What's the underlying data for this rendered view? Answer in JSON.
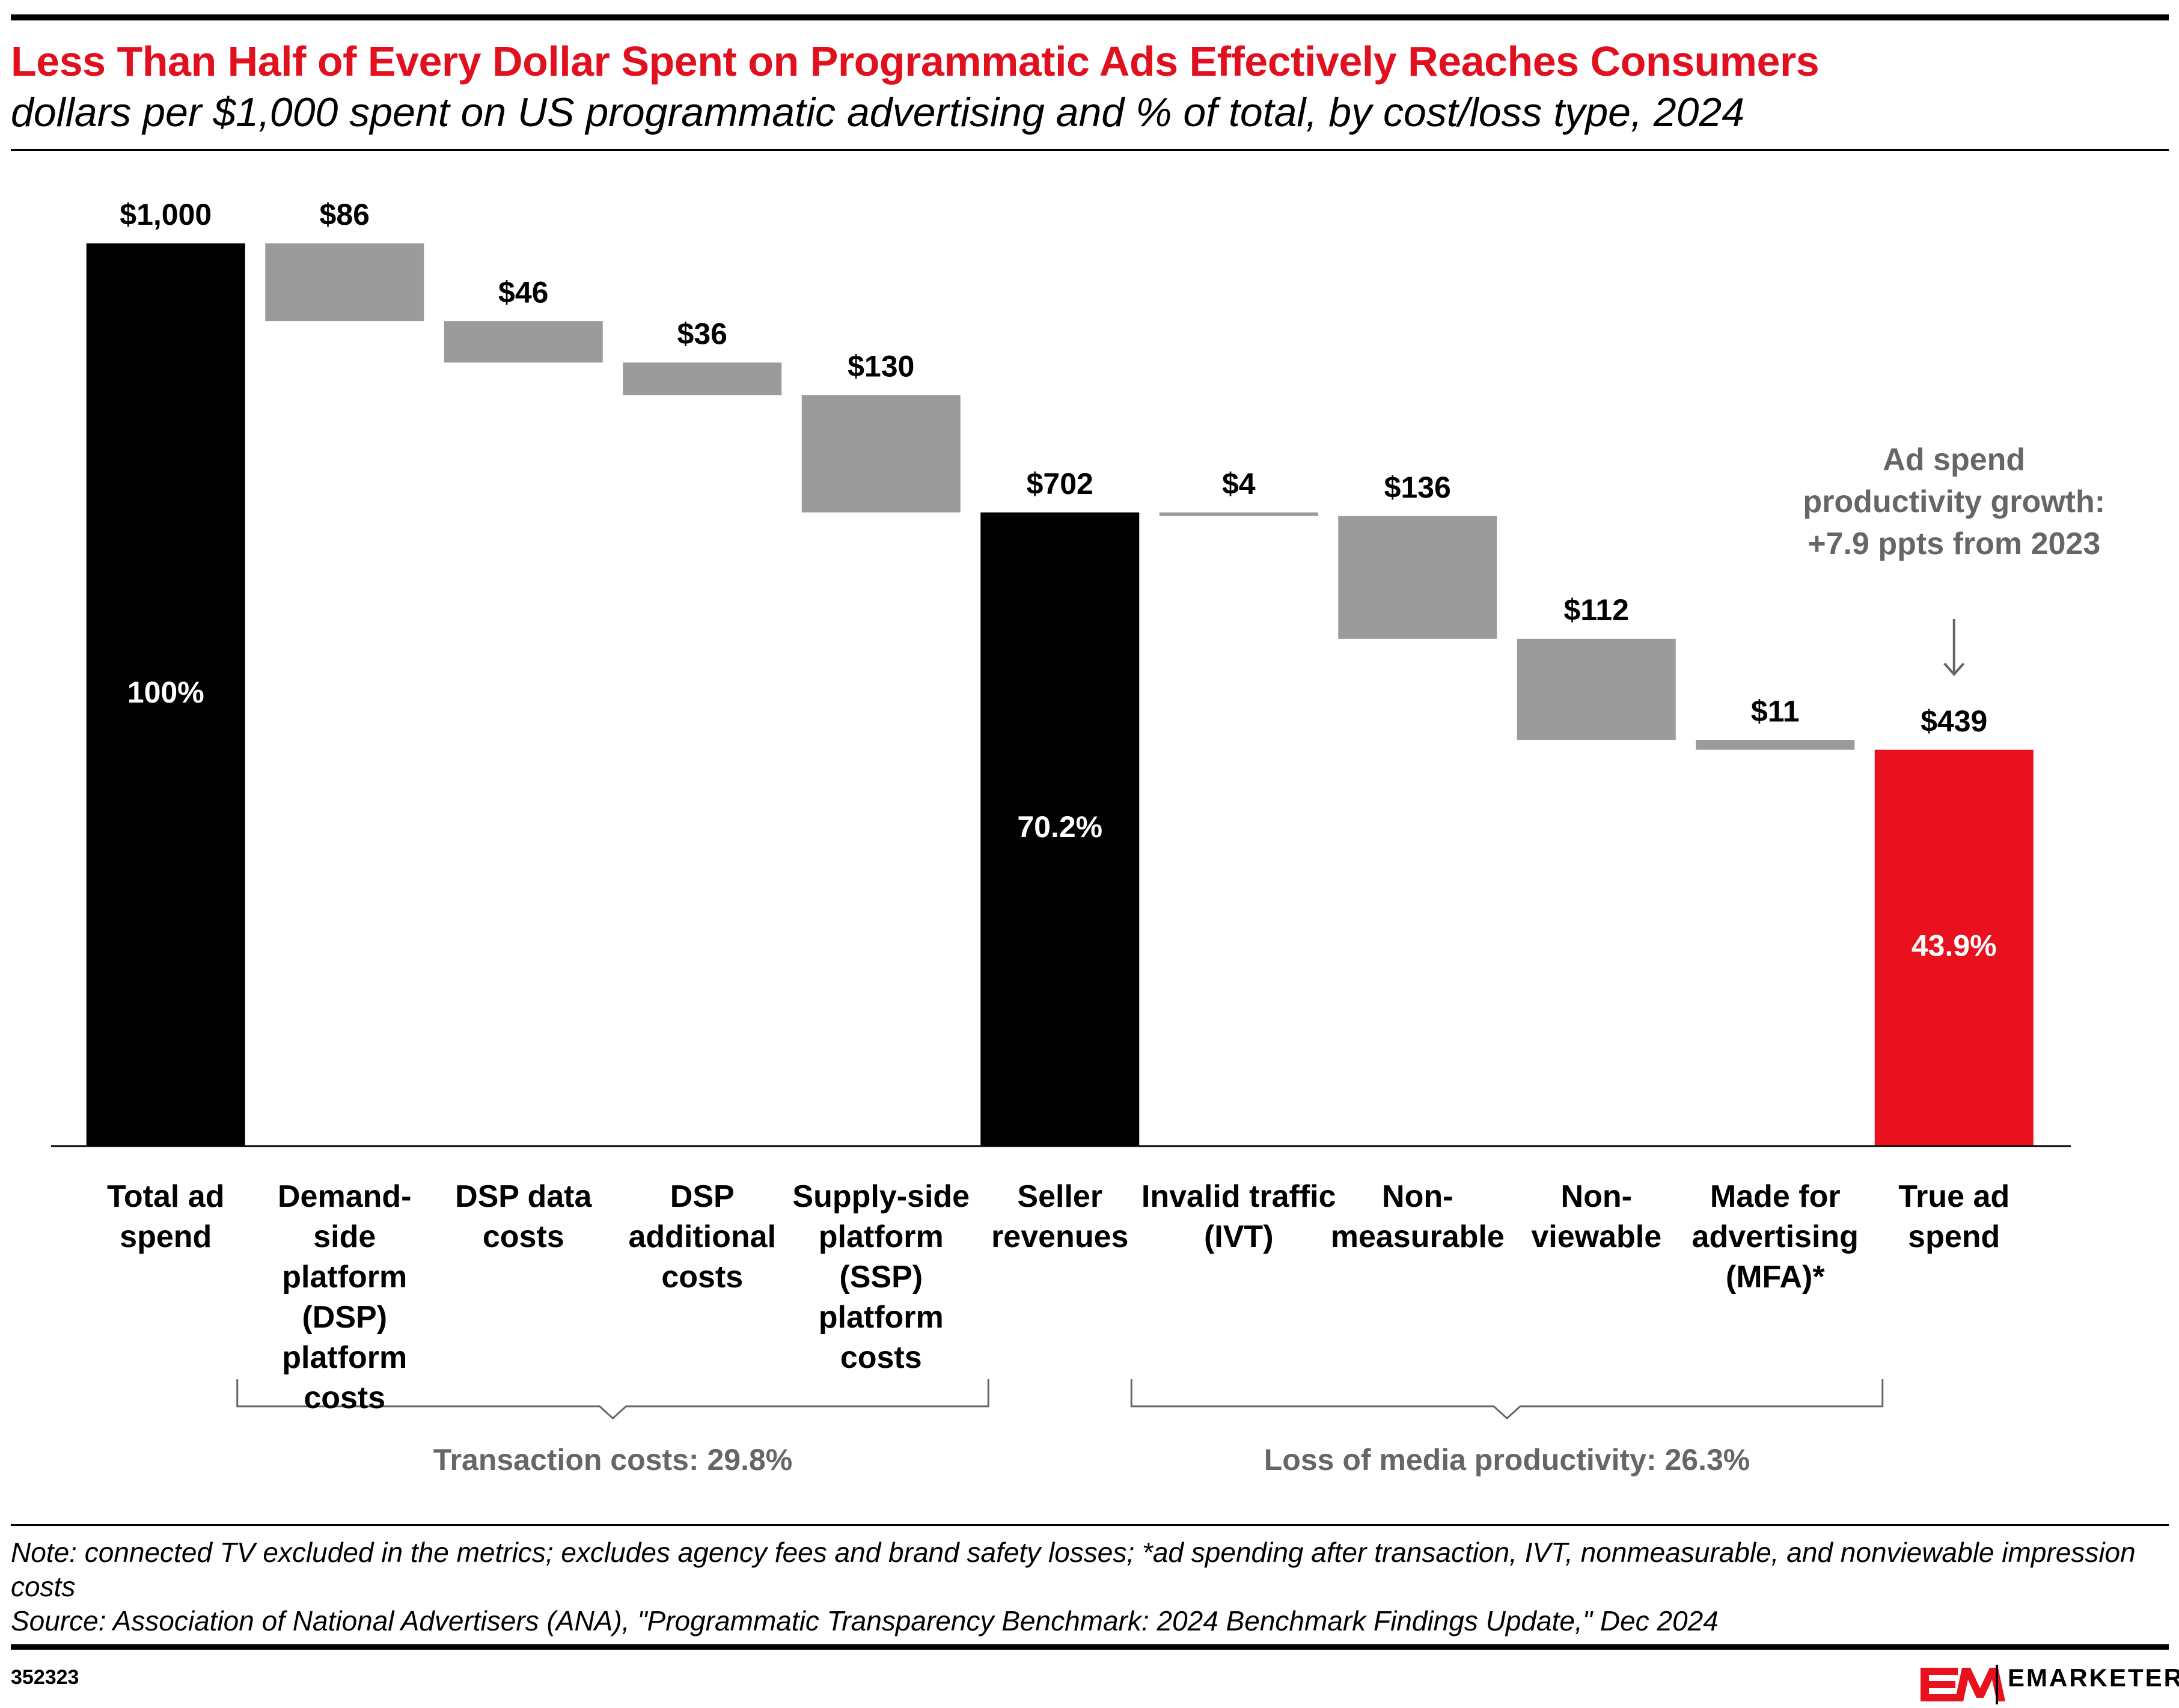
{
  "chart_data": {
    "type": "waterfall",
    "title": "Less Than Half of Every Dollar Spent on Programmatic Ads Effectively Reaches Consumers",
    "subtitle": "dollars per $1,000 spent on US programmatic advertising and % of total, by cost/loss type, 2024",
    "categories": [
      "Total ad spend",
      "Demand-side platform (DSP) platform costs",
      "DSP data costs",
      "DSP additional costs",
      "Supply-side platform (SSP) platform costs",
      "Seller revenues",
      "Invalid traffic (IVT)",
      "Non-measurable",
      "Non-viewable",
      "Made for advertising (MFA)*",
      "True ad spend"
    ],
    "values": [
      1000,
      86,
      46,
      36,
      130,
      702,
      4,
      136,
      112,
      11,
      439
    ],
    "value_labels": [
      "$1,000",
      "$86",
      "$46",
      "$36",
      "$130",
      "$702",
      "$4",
      "$136",
      "$112",
      "$11",
      "$439"
    ],
    "bar_kinds": [
      "total",
      "decrease",
      "decrease",
      "decrease",
      "decrease",
      "total",
      "decrease",
      "decrease",
      "decrease",
      "decrease",
      "total"
    ],
    "colors": [
      "#000000",
      "#9b9b9b",
      "#9b9b9b",
      "#9b9b9b",
      "#9b9b9b",
      "#000000",
      "#9b9b9b",
      "#9b9b9b",
      "#9b9b9b",
      "#9b9b9b",
      "#e8111d"
    ],
    "share_values": [
      100,
      null,
      null,
      null,
      null,
      70.2,
      null,
      null,
      null,
      null,
      43.9
    ],
    "share_labels": [
      "100%",
      null,
      null,
      null,
      null,
      "70.2%",
      null,
      null,
      null,
      null,
      "43.9%"
    ],
    "ylim": [
      0,
      1000
    ],
    "groups": [
      {
        "label": "Transaction costs: 29.8%",
        "first": 1,
        "last": 4
      },
      {
        "label": "Loss of media productivity: 26.3%",
        "first": 6,
        "last": 9
      }
    ],
    "annotation": {
      "text": "Ad spend productivity growth: +7.9 ppts from 2023",
      "category": 10
    }
  },
  "footer": {
    "note": "Note: connected TV excluded in the metrics; excludes agency fees and brand safety losses; *ad spending after transaction, IVT, nonmeasurable, and nonviewable impression costs",
    "source": "Source: Association of National Advertisers (ANA), \"Programmatic Transparency Benchmark: 2024 Benchmark Findings Update,\" Dec 2024",
    "chart_id": "352323",
    "brand": "EMARKETER"
  }
}
